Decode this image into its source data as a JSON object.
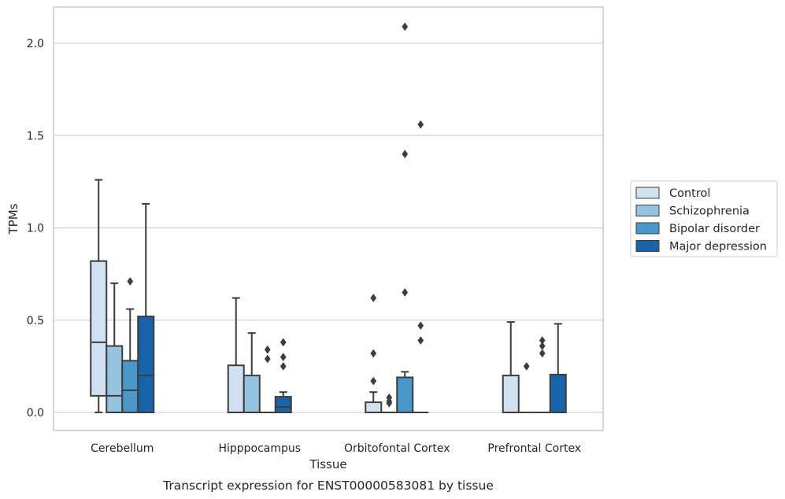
{
  "chart_data": {
    "type": "box",
    "title": "",
    "caption": "Transcript expression for ENST00000583081 by tissue",
    "xlabel": "Tissue",
    "ylabel": "TPMs",
    "ylim": [
      -0.1,
      2.2
    ],
    "yticks": [
      0.0,
      0.5,
      1.0,
      1.5,
      2.0
    ],
    "ytick_labels": [
      "0.0",
      "0.5",
      "1.0",
      "1.5",
      "2.0"
    ],
    "grid": "horizontal",
    "legend_position": "right",
    "categories": [
      "Cerebellum",
      "Hipppocampus",
      "Orbitofontal Cortex",
      "Prefrontal Cortex"
    ],
    "series": [
      {
        "name": "Control",
        "color": "#d0e1f2",
        "boxes": [
          {
            "q1": 0.09,
            "median": 0.38,
            "q3": 0.82,
            "whisker_low": 0.0,
            "whisker_high": 1.26,
            "outliers": []
          },
          {
            "q1": 0.0,
            "median": 0.0,
            "q3": 0.255,
            "whisker_low": 0.0,
            "whisker_high": 0.62,
            "outliers": []
          },
          {
            "q1": 0.0,
            "median": 0.0,
            "q3": 0.055,
            "whisker_low": 0.0,
            "whisker_high": 0.11,
            "outliers": [
              0.17,
              0.32,
              0.62
            ]
          },
          {
            "q1": 0.0,
            "median": 0.0,
            "q3": 0.2,
            "whisker_low": 0.0,
            "whisker_high": 0.49,
            "outliers": []
          }
        ]
      },
      {
        "name": "Schizophrenia",
        "color": "#94c4df",
        "boxes": [
          {
            "q1": 0.0,
            "median": 0.09,
            "q3": 0.36,
            "whisker_low": 0.0,
            "whisker_high": 0.7,
            "outliers": []
          },
          {
            "q1": 0.0,
            "median": 0.0,
            "q3": 0.2,
            "whisker_low": 0.0,
            "whisker_high": 0.43,
            "outliers": []
          },
          {
            "q1": 0.0,
            "median": 0.0,
            "q3": 0.0,
            "whisker_low": 0.0,
            "whisker_high": 0.0,
            "outliers": [
              0.05,
              0.06,
              0.08
            ]
          },
          {
            "q1": 0.0,
            "median": 0.0,
            "q3": 0.0,
            "whisker_low": 0.0,
            "whisker_high": 0.0,
            "outliers": [
              0.25
            ]
          }
        ]
      },
      {
        "name": "Bipolar disorder",
        "color": "#4a98c9",
        "boxes": [
          {
            "q1": 0.0,
            "median": 0.12,
            "q3": 0.28,
            "whisker_low": 0.0,
            "whisker_high": 0.56,
            "outliers": [
              0.71
            ]
          },
          {
            "q1": 0.0,
            "median": 0.0,
            "q3": 0.0,
            "whisker_low": 0.0,
            "whisker_high": 0.0,
            "outliers": [
              0.29,
              0.34
            ]
          },
          {
            "q1": 0.0,
            "median": 0.0,
            "q3": 0.19,
            "whisker_low": 0.0,
            "whisker_high": 0.22,
            "outliers": [
              0.65,
              1.4,
              2.09
            ]
          },
          {
            "q1": 0.0,
            "median": 0.0,
            "q3": 0.0,
            "whisker_low": 0.0,
            "whisker_high": 0.0,
            "outliers": [
              0.32,
              0.36,
              0.39
            ]
          }
        ]
      },
      {
        "name": "Major depression",
        "color": "#1764ab",
        "boxes": [
          {
            "q1": 0.0,
            "median": 0.2,
            "q3": 0.52,
            "whisker_low": 0.0,
            "whisker_high": 1.13,
            "outliers": []
          },
          {
            "q1": 0.0,
            "median": 0.03,
            "q3": 0.085,
            "whisker_low": 0.0,
            "whisker_high": 0.11,
            "outliers": [
              0.25,
              0.3,
              0.38
            ]
          },
          {
            "q1": 0.0,
            "median": 0.0,
            "q3": 0.0,
            "whisker_low": 0.0,
            "whisker_high": 0.0,
            "outliers": [
              0.39,
              0.47,
              1.56
            ]
          },
          {
            "q1": 0.0,
            "median": 0.0,
            "q3": 0.205,
            "whisker_low": 0.0,
            "whisker_high": 0.48,
            "outliers": []
          }
        ]
      }
    ]
  }
}
